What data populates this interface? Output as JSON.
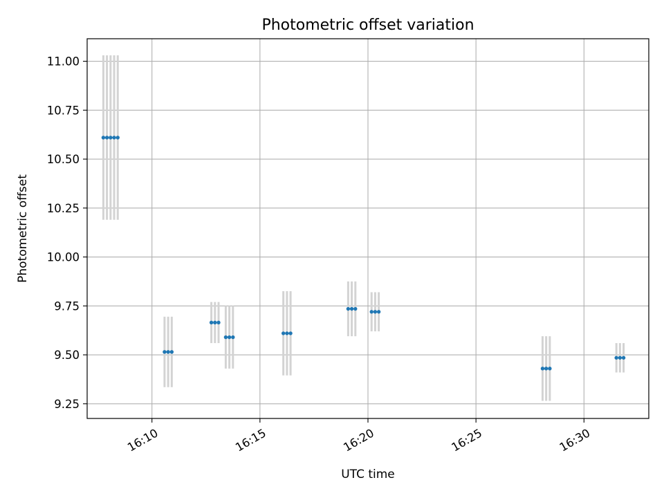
{
  "chart_data": {
    "type": "scatter",
    "title": "Photometric offset variation",
    "xlabel": "UTC time",
    "ylabel": "Photometric offset",
    "x_axis": {
      "unit": "UTC time (HH:MM:SS)",
      "range": [
        "16:07:00",
        "16:33:00"
      ],
      "ticks": [
        "16:10",
        "16:15",
        "16:20",
        "16:25",
        "16:30"
      ]
    },
    "y_axis": {
      "range": [
        9.175,
        11.115
      ],
      "ticks": [
        9.25,
        9.5,
        9.75,
        10.0,
        10.25,
        10.5,
        10.75,
        11.0
      ],
      "tick_labels": [
        "9.25",
        "9.50",
        "9.75",
        "10.00",
        "10.25",
        "10.50",
        "10.75",
        "11.00"
      ]
    },
    "grid": true,
    "colors": {
      "points": "#1f77b4",
      "errorbars": "#d3d3d3",
      "grid": "#b0b0b0"
    },
    "series": [
      {
        "points": [
          {
            "x": "16:07:45",
            "y": 10.61,
            "err_low": 10.19,
            "err_high": 11.03
          },
          {
            "x": "16:07:55",
            "y": 10.61,
            "err_low": 10.19,
            "err_high": 11.03
          },
          {
            "x": "16:08:05",
            "y": 10.61,
            "err_low": 10.19,
            "err_high": 11.03
          },
          {
            "x": "16:08:15",
            "y": 10.61,
            "err_low": 10.19,
            "err_high": 11.03
          },
          {
            "x": "16:08:25",
            "y": 10.61,
            "err_low": 10.19,
            "err_high": 11.03
          },
          {
            "x": "16:10:35",
            "y": 9.515,
            "err_low": 9.335,
            "err_high": 9.695
          },
          {
            "x": "16:10:45",
            "y": 9.515,
            "err_low": 9.335,
            "err_high": 9.695
          },
          {
            "x": "16:10:55",
            "y": 9.515,
            "err_low": 9.335,
            "err_high": 9.695
          },
          {
            "x": "16:12:45",
            "y": 9.665,
            "err_low": 9.56,
            "err_high": 9.77
          },
          {
            "x": "16:12:55",
            "y": 9.665,
            "err_low": 9.56,
            "err_high": 9.77
          },
          {
            "x": "16:13:05",
            "y": 9.665,
            "err_low": 9.56,
            "err_high": 9.77
          },
          {
            "x": "16:13:25",
            "y": 9.59,
            "err_low": 9.43,
            "err_high": 9.75
          },
          {
            "x": "16:13:35",
            "y": 9.59,
            "err_low": 9.43,
            "err_high": 9.75
          },
          {
            "x": "16:13:45",
            "y": 9.59,
            "err_low": 9.43,
            "err_high": 9.75
          },
          {
            "x": "16:16:05",
            "y": 9.61,
            "err_low": 9.395,
            "err_high": 9.825
          },
          {
            "x": "16:16:15",
            "y": 9.61,
            "err_low": 9.395,
            "err_high": 9.825
          },
          {
            "x": "16:16:25",
            "y": 9.61,
            "err_low": 9.395,
            "err_high": 9.825
          },
          {
            "x": "16:19:05",
            "y": 9.735,
            "err_low": 9.595,
            "err_high": 9.875
          },
          {
            "x": "16:19:15",
            "y": 9.735,
            "err_low": 9.595,
            "err_high": 9.875
          },
          {
            "x": "16:19:25",
            "y": 9.735,
            "err_low": 9.595,
            "err_high": 9.875
          },
          {
            "x": "16:20:10",
            "y": 9.72,
            "err_low": 9.62,
            "err_high": 9.82
          },
          {
            "x": "16:20:20",
            "y": 9.72,
            "err_low": 9.62,
            "err_high": 9.82
          },
          {
            "x": "16:20:30",
            "y": 9.72,
            "err_low": 9.62,
            "err_high": 9.82
          },
          {
            "x": "16:28:05",
            "y": 9.43,
            "err_low": 9.265,
            "err_high": 9.595
          },
          {
            "x": "16:28:15",
            "y": 9.43,
            "err_low": 9.265,
            "err_high": 9.595
          },
          {
            "x": "16:28:25",
            "y": 9.43,
            "err_low": 9.265,
            "err_high": 9.595
          },
          {
            "x": "16:31:30",
            "y": 9.485,
            "err_low": 9.41,
            "err_high": 9.56
          },
          {
            "x": "16:31:40",
            "y": 9.485,
            "err_low": 9.41,
            "err_high": 9.56
          },
          {
            "x": "16:31:50",
            "y": 9.485,
            "err_low": 9.41,
            "err_high": 9.56
          }
        ]
      }
    ]
  }
}
